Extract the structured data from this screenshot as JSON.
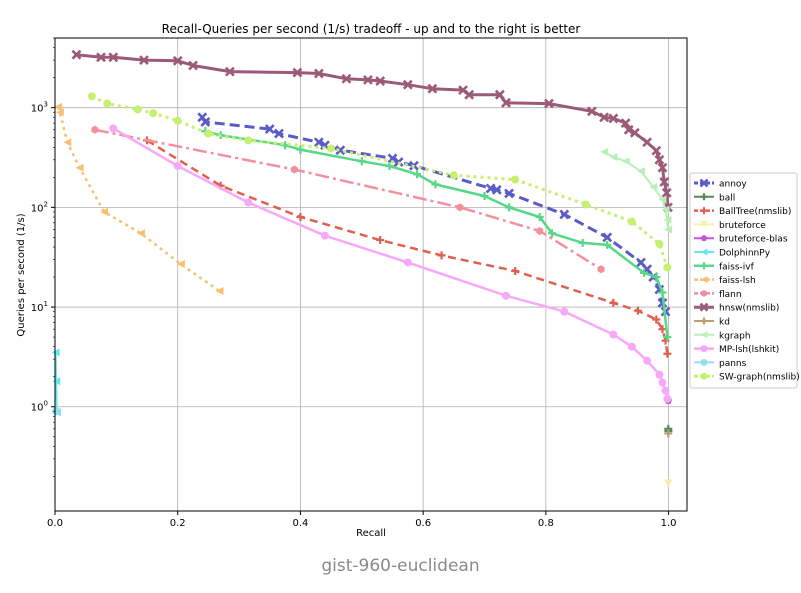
{
  "chart_data": {
    "type": "line",
    "title": "Recall-Queries per second (1/s) tradeoff - up and to the right is better",
    "xlabel": "Recall",
    "ylabel": "Queries per second (1/s)",
    "xlim": [
      0.0,
      1.03
    ],
    "ylim": [
      0.09,
      5000
    ],
    "yscale": "log",
    "grid": true,
    "legend_position": "right",
    "x_ticks": [
      "0.0",
      "0.2",
      "0.4",
      "0.6",
      "0.8",
      "1.0"
    ],
    "y_ticks": [
      {
        "base": "10",
        "exp": "0",
        "value": 1
      },
      {
        "base": "10",
        "exp": "1",
        "value": 10
      },
      {
        "base": "10",
        "exp": "2",
        "value": 100
      },
      {
        "base": "10",
        "exp": "3",
        "value": 1000
      }
    ],
    "series": [
      {
        "name": "annoy",
        "color": "#5b5bc8",
        "dash": "10,5",
        "width": 3,
        "marker": "x",
        "x": [
          0.24,
          0.245,
          0.35,
          0.365,
          0.43,
          0.44,
          0.465,
          0.55,
          0.56,
          0.585,
          0.71,
          0.72,
          0.74,
          0.83,
          0.9,
          0.955,
          0.965,
          0.975,
          0.985,
          0.99,
          0.995
        ],
        "y": [
          800,
          720,
          610,
          550,
          450,
          420,
          375,
          310,
          285,
          262,
          155,
          150,
          138,
          85,
          50,
          28,
          24,
          20,
          15,
          11,
          9
        ]
      },
      {
        "name": "ball",
        "color": "#5a8a5a",
        "dash": "",
        "width": 2,
        "marker": "plus",
        "x": [
          0.9995,
          0.9997
        ],
        "y": [
          0.6,
          0.57
        ]
      },
      {
        "name": "BallTree(nmslib)",
        "color": "#e06050",
        "dash": "8,5",
        "width": 2.5,
        "marker": "plus",
        "x": [
          0.15,
          0.27,
          0.4,
          0.53,
          0.63,
          0.75,
          0.91,
          0.95,
          0.98,
          0.99,
          0.995,
          0.998
        ],
        "y": [
          470,
          165,
          80,
          47,
          33,
          23,
          11,
          9.2,
          7.5,
          6,
          4.6,
          3.4
        ]
      },
      {
        "name": "bruteforce",
        "color": "#f5f0a8",
        "dash": "",
        "width": 2,
        "marker": "triangle-down",
        "x": [
          0.9995
        ],
        "y": [
          0.17
        ]
      },
      {
        "name": "bruteforce-blas",
        "color": "#c457d8",
        "dash": "",
        "width": 2,
        "marker": "pentagon",
        "x": [
          0.9995
        ],
        "y": [
          1.15
        ]
      },
      {
        "name": "DolphinnPy",
        "color": "#66e8f0",
        "dash": "",
        "width": 2,
        "marker": "triangle-left",
        "x": [
          0.001,
          0.002,
          0.003
        ],
        "y": [
          3.5,
          1.8,
          0.88
        ]
      },
      {
        "name": "faiss-ivf",
        "color": "#55d888",
        "dash": "",
        "width": 2.5,
        "marker": "plus",
        "x": [
          0.245,
          0.27,
          0.375,
          0.4,
          0.5,
          0.545,
          0.59,
          0.62,
          0.7,
          0.74,
          0.79,
          0.81,
          0.86,
          0.9,
          0.96,
          0.98,
          0.99,
          0.998
        ],
        "y": [
          580,
          530,
          420,
          380,
          290,
          260,
          215,
          170,
          130,
          100,
          80,
          55,
          44,
          42,
          22,
          20,
          14,
          5
        ]
      },
      {
        "name": "faiss-lsh",
        "color": "#f8c070",
        "dash": "3,4",
        "width": 2.5,
        "marker": "triangle-left",
        "x": [
          0.005,
          0.008,
          0.02,
          0.04,
          0.08,
          0.14,
          0.205,
          0.268
        ],
        "y": [
          1020,
          900,
          450,
          250,
          90,
          55,
          27,
          14.5
        ]
      },
      {
        "name": "flann",
        "color": "#f4909e",
        "dash": "14,4,3,4",
        "width": 2.5,
        "marker": "hexagon",
        "x": [
          0.065,
          0.39,
          0.66,
          0.79,
          0.89
        ],
        "y": [
          600,
          240,
          100,
          58,
          24
        ]
      },
      {
        "name": "hnsw(nmslib)",
        "color": "#9a5a78",
        "dash": "",
        "width": 3,
        "marker": "x",
        "x": [
          0.035,
          0.075,
          0.095,
          0.145,
          0.2,
          0.225,
          0.285,
          0.395,
          0.43,
          0.475,
          0.51,
          0.53,
          0.575,
          0.615,
          0.665,
          0.675,
          0.725,
          0.735,
          0.805,
          0.875,
          0.895,
          0.91,
          0.93,
          0.935,
          0.945,
          0.965,
          0.98,
          0.985,
          0.99,
          0.993,
          0.997,
          0.999
        ],
        "y": [
          3400,
          3200,
          3200,
          3000,
          2950,
          2650,
          2300,
          2250,
          2200,
          1950,
          1900,
          1850,
          1700,
          1550,
          1500,
          1350,
          1350,
          1120,
          1100,
          920,
          800,
          780,
          700,
          600,
          560,
          450,
          370,
          300,
          250,
          180,
          140,
          100
        ]
      },
      {
        "name": "kd",
        "color": "#b8a070",
        "dash": "",
        "width": 2,
        "marker": "plus",
        "x": [
          0.9995
        ],
        "y": [
          0.54
        ]
      },
      {
        "name": "kgraph",
        "color": "#b8f0b8",
        "dash": "",
        "width": 2,
        "marker": "triangle-left",
        "x": [
          0.895,
          0.91,
          0.93,
          0.955,
          0.975,
          0.99,
          0.995,
          0.998,
          0.999
        ],
        "y": [
          360,
          320,
          290,
          230,
          160,
          120,
          95,
          75,
          60
        ]
      },
      {
        "name": "MP-lsh(lshkit)",
        "color": "#f8a8f8",
        "dash": "",
        "width": 2.5,
        "marker": "circle",
        "x": [
          0.095,
          0.2,
          0.315,
          0.44,
          0.575,
          0.735,
          0.83,
          0.91,
          0.94,
          0.965,
          0.985,
          0.99,
          0.995,
          0.998
        ],
        "y": [
          620,
          260,
          112,
          52,
          28,
          13,
          9,
          5.3,
          4,
          2.9,
          2.1,
          1.75,
          1.45,
          1.2
        ]
      },
      {
        "name": "panns",
        "color": "#99dcea",
        "dash": "",
        "width": 2,
        "marker": "circle",
        "x": [
          0.002
        ],
        "y": [
          0.9
        ]
      },
      {
        "name": "SW-graph(nmslib)",
        "color": "#c5f070",
        "dash": "3,4",
        "width": 3,
        "marker": "circle",
        "x": [
          0.06,
          0.085,
          0.135,
          0.16,
          0.2,
          0.25,
          0.315,
          0.45,
          0.65,
          0.75,
          0.865,
          0.94,
          0.985,
          0.998
        ],
        "y": [
          1300,
          1100,
          960,
          880,
          740,
          550,
          470,
          390,
          210,
          190,
          107,
          72,
          43,
          25
        ]
      }
    ]
  },
  "caption": "gist-960-euclidean"
}
